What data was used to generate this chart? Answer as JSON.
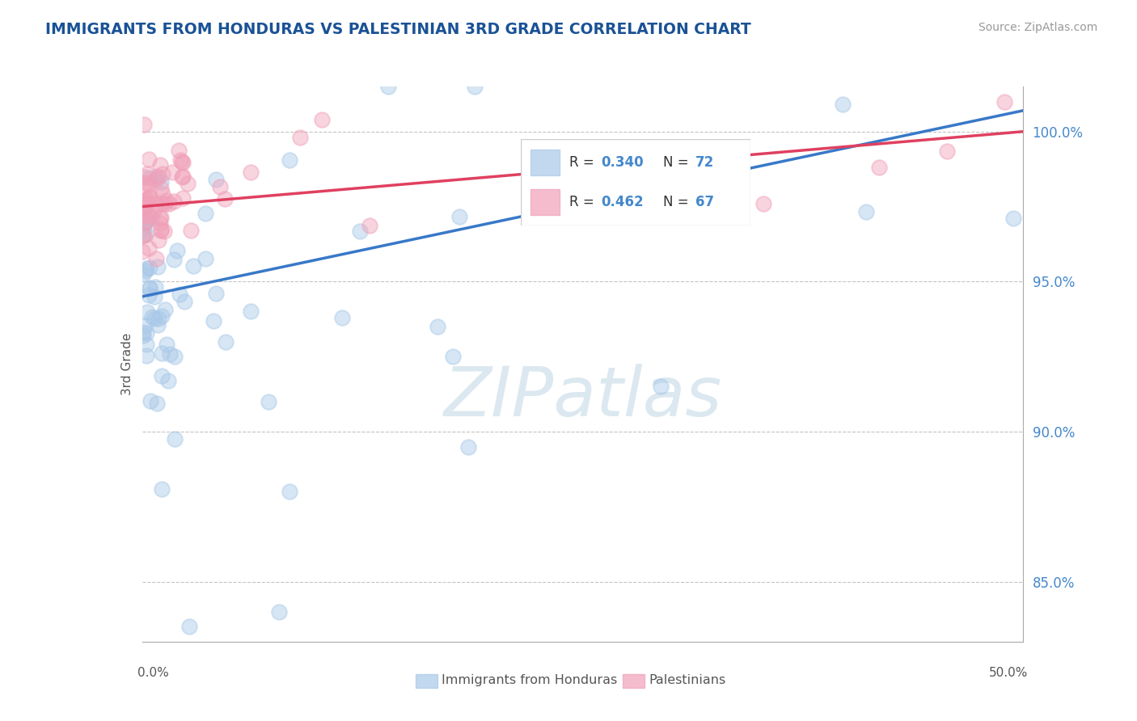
{
  "title": "IMMIGRANTS FROM HONDURAS VS PALESTINIAN 3RD GRADE CORRELATION CHART",
  "source": "Source: ZipAtlas.com",
  "ylabel": "3rd Grade",
  "xlim": [
    0.0,
    50.0
  ],
  "ylim": [
    83.0,
    101.5
  ],
  "yticks": [
    85.0,
    90.0,
    95.0,
    100.0
  ],
  "ytick_labels": [
    "85.0%",
    "90.0%",
    "95.0%",
    "100.0%"
  ],
  "blue_color": "#a8c8e8",
  "pink_color": "#f0a0b8",
  "blue_line_color": "#3878c8",
  "pink_line_color": "#e04060",
  "title_color": "#1a5296",
  "axis_color": "#aaaaaa",
  "tick_label_color": "#4488cc",
  "watermark_color": "#dce8f0",
  "source_color": "#999999",
  "ylabel_color": "#555555",
  "legend_text_color": "#333333",
  "legend_value_color": "#4488cc",
  "bottom_legend_color": "#555555",
  "blue_intercept": 94.5,
  "blue_slope_per50": 6.2,
  "pink_intercept": 97.5,
  "pink_slope_per50": 2.5
}
